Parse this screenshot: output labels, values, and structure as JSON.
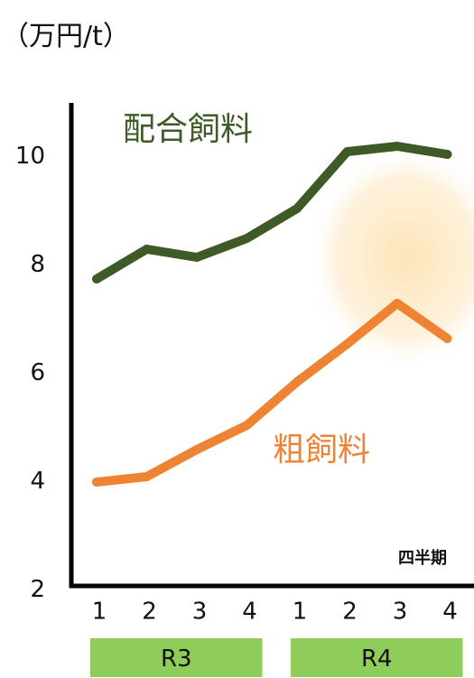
{
  "chart_data": {
    "type": "line",
    "unit_label": "（万円/t）",
    "xlabel": "四半期",
    "ylabel": "",
    "ylim": [
      2,
      10.8
    ],
    "yticks": [
      2,
      4,
      6,
      8,
      10
    ],
    "categories": [
      "1",
      "2",
      "3",
      "4",
      "1",
      "2",
      "3",
      "4"
    ],
    "groups": [
      {
        "label": "R3",
        "span": [
          0,
          3
        ]
      },
      {
        "label": "R4",
        "span": [
          4,
          7
        ]
      }
    ],
    "series": [
      {
        "name": "配合飼料",
        "color": "#3d5a27",
        "values": [
          7.7,
          8.25,
          8.1,
          8.45,
          9.0,
          10.05,
          10.15,
          10.0
        ]
      },
      {
        "name": "粗飼料",
        "color": "#ee8433",
        "values": [
          3.95,
          4.05,
          4.55,
          5.0,
          5.8,
          6.5,
          7.25,
          6.6
        ]
      }
    ],
    "grid": false,
    "legend": "inline labels",
    "group_color": "#8fcd5a"
  }
}
